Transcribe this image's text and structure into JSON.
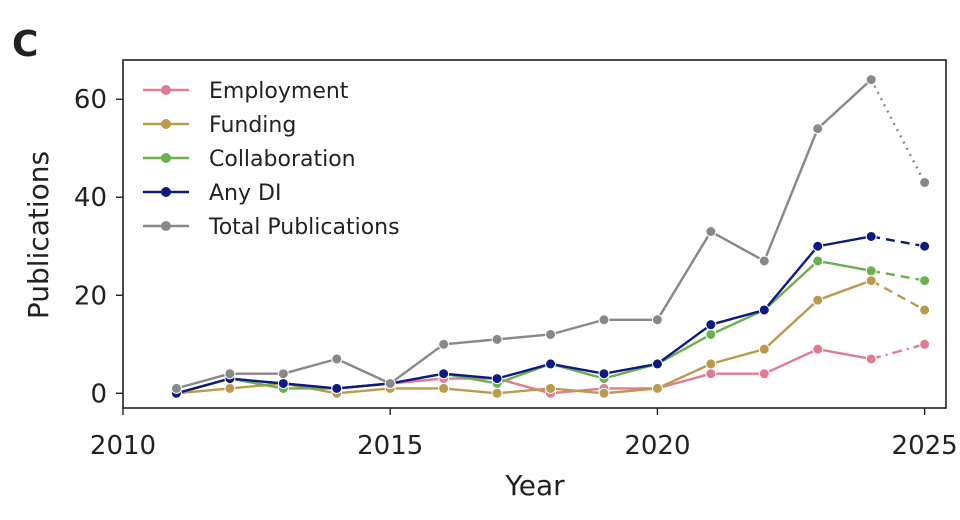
{
  "panel_label": "C",
  "chart_data": {
    "type": "line",
    "title": "",
    "xlabel": "Year",
    "ylabel": "Publications",
    "xlim": [
      2010,
      2025.4
    ],
    "ylim": [
      -3,
      68
    ],
    "xticks": [
      2010,
      2015,
      2020,
      2025
    ],
    "yticks": [
      0,
      20,
      40,
      60
    ],
    "xtick_labels": [
      "2010",
      "2015",
      "2020",
      "2025"
    ],
    "ytick_labels": [
      "0",
      "20",
      "40",
      "60"
    ],
    "grid": false,
    "legend_position": "top-left",
    "x": [
      2011,
      2012,
      2013,
      2014,
      2015,
      2016,
      2017,
      2018,
      2019,
      2020,
      2021,
      2022,
      2023,
      2024,
      2025
    ],
    "projected_from_x": 2024,
    "series": [
      {
        "name": "Employment",
        "color": "#e07b91",
        "projection_style": "dashdot",
        "values": [
          0,
          3,
          2,
          1,
          2,
          3,
          3,
          0,
          1,
          1,
          4,
          4,
          9,
          7,
          10
        ]
      },
      {
        "name": "Funding",
        "color": "#bc9a4c",
        "projection_style": "dashed",
        "values": [
          0,
          1,
          2,
          0,
          1,
          1,
          0,
          1,
          0,
          1,
          6,
          9,
          19,
          23,
          17
        ]
      },
      {
        "name": "Collaboration",
        "color": "#6ab04c",
        "projection_style": "dashed",
        "values": [
          0,
          3,
          1,
          1,
          2,
          4,
          2,
          6,
          3,
          6,
          12,
          17,
          27,
          25,
          23
        ]
      },
      {
        "name": "Any DI",
        "color": "#0d1b80",
        "projection_style": "dashed",
        "values": [
          0,
          3,
          2,
          1,
          2,
          4,
          3,
          6,
          4,
          6,
          14,
          17,
          30,
          32,
          30
        ]
      },
      {
        "name": "Total Publications",
        "color": "#888888",
        "projection_style": "dotted",
        "values": [
          1,
          4,
          4,
          7,
          2,
          10,
          11,
          12,
          15,
          15,
          33,
          27,
          54,
          64,
          43
        ]
      }
    ]
  }
}
